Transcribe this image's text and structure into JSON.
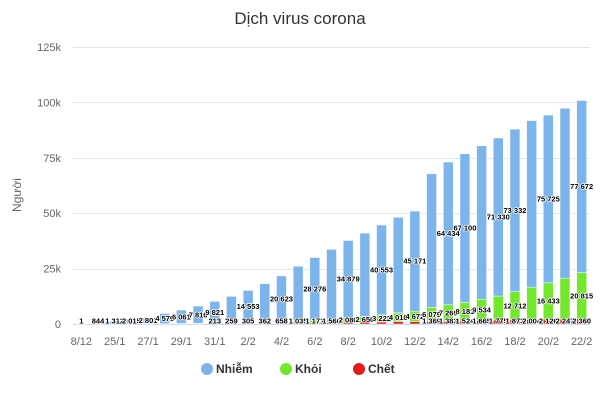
{
  "chart_data": {
    "type": "bar",
    "stacked": true,
    "title": "Dịch virus corona",
    "xlabel": "",
    "ylabel": "Người",
    "ylim": [
      0,
      125000
    ],
    "yticks": [
      0,
      25000,
      50000,
      75000,
      100000,
      125000
    ],
    "ytick_labels": [
      "0",
      "25k",
      "50k",
      "75k",
      "100k",
      "125k"
    ],
    "grid": true,
    "legend": "bottom-center",
    "categories": [
      "8/12",
      "",
      "25/1",
      "",
      "27/1",
      "",
      "29/1",
      "",
      "31/1",
      "",
      "2/2",
      "",
      "4/2",
      "",
      "6/2",
      "",
      "8/2",
      "",
      "10/2",
      "",
      "12/2",
      "",
      "14/2",
      "",
      "16/2",
      "",
      "18/2",
      "",
      "20/2",
      "",
      "22/2"
    ],
    "series": [
      {
        "name": "Nhiễm",
        "color": "#7cb5ec",
        "values": [
          1,
          844,
          1312,
          2015,
          2801,
          4579,
          6061,
          7816,
          9821,
          11953,
          14553,
          17391,
          20623,
          24554,
          28276,
          31481,
          34879,
          37558,
          40553,
          43103,
          45171,
          60384,
          64434,
          67100,
          69197,
          71330,
          73332,
          75184,
          75725,
          76719,
          77672
        ],
        "labels": [
          "1",
          "844",
          "1 312",
          "2 015",
          "2 801",
          "4 579",
          "6 061",
          "7 816",
          "9 821",
          null,
          "14 553",
          null,
          "20 623",
          null,
          "28 276",
          null,
          "34 879",
          null,
          "40 553",
          null,
          "45 171",
          null,
          "64 434",
          "67 100",
          null,
          "71 330",
          "73 332",
          null,
          "75 725",
          null,
          "77 672"
        ]
      },
      {
        "name": "Khỏi",
        "color": "#72e82c",
        "values": [
          0,
          34,
          38,
          49,
          51,
          60,
          103,
          124,
          171,
          243,
          328,
          475,
          658,
          1035,
          1171,
          1560,
          2080,
          2650,
          3222,
          4010,
          4672,
          6079,
          7269,
          8181,
          9534,
          10844,
          12712,
          14611,
          16433,
          18412,
          20815
        ],
        "labels": [
          null,
          null,
          null,
          null,
          null,
          null,
          null,
          null,
          null,
          null,
          null,
          null,
          "658",
          "1 035",
          "1 171",
          "1 560",
          "2 080",
          "2 650",
          "3 222",
          "4 010",
          "4 672",
          "6 079",
          "7 269",
          "8 181",
          "9 534",
          null,
          "12 712",
          null,
          "16 433",
          null,
          "20 815"
        ]
      },
      {
        "name": "Chết",
        "color": "#e41b1b",
        "values": [
          0,
          25,
          41,
          56,
          80,
          106,
          132,
          170,
          213,
          259,
          305,
          362,
          426,
          492,
          565,
          638,
          724,
          813,
          910,
          1018,
          1115,
          1369,
          1383,
          1524,
          1665,
          1775,
          1873,
          2004,
          2126,
          2247,
          2360
        ],
        "labels": [
          null,
          null,
          null,
          null,
          null,
          null,
          null,
          null,
          "213",
          "259",
          "305",
          "362",
          null,
          null,
          null,
          null,
          null,
          null,
          null,
          null,
          null,
          "1 369",
          "1 383",
          "1 524",
          "1 665",
          "1 775",
          "1 873",
          "2 004",
          "2 126",
          "2 247",
          "2 360"
        ]
      }
    ]
  }
}
